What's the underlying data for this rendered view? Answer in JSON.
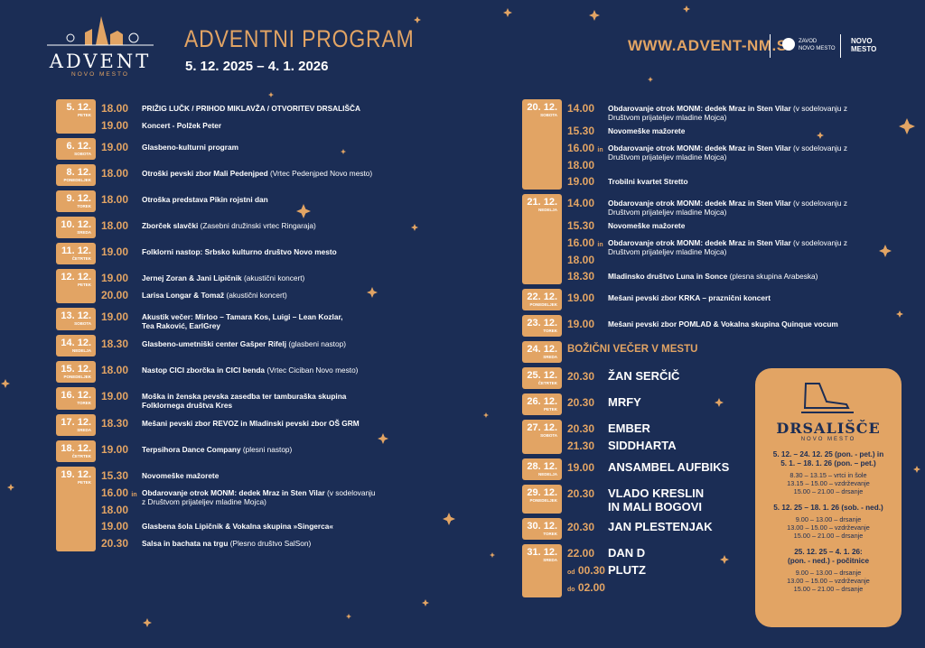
{
  "header": {
    "logo": {
      "name": "ADVENT",
      "city": "NOVO MESTO"
    },
    "title": "ADVENTNI PROGRAM",
    "dates": "5. 12. 2025 – 4. 1. 2026",
    "url": "WWW.ADVENT-NM.SI",
    "partners": [
      "ZAVOD\nNOVO MESTO",
      "NOVO\nMESTO"
    ]
  },
  "columns": [
    {
      "days": [
        {
          "date": "5. 12.",
          "weekday": "PETEK",
          "events": [
            {
              "times": [
                {
                  "t": "18.00"
                }
              ],
              "title": "PRIŽIG LUČK / PRIHOD MIKLAVŽA / OTVORITEV DRSALIŠČA"
            },
            {
              "times": [
                {
                  "t": "19.00"
                }
              ],
              "title": "Koncert - Polžek Peter"
            }
          ]
        },
        {
          "date": "6. 12.",
          "weekday": "SOBOTA",
          "events": [
            {
              "times": [
                {
                  "t": "19.00"
                }
              ],
              "title": "Glasbeno-kulturni program"
            }
          ]
        },
        {
          "date": "8. 12.",
          "weekday": "PONEDELJEK",
          "events": [
            {
              "times": [
                {
                  "t": "18.00"
                }
              ],
              "title": "Otroški pevski zbor Mali Pedenjped",
              "note": "(Vrtec Pedenjped Novo mesto)"
            }
          ]
        },
        {
          "date": "9. 12.",
          "weekday": "TOREK",
          "events": [
            {
              "times": [
                {
                  "t": "18.00"
                }
              ],
              "title": "Otroška predstava Pikin rojstni dan"
            }
          ]
        },
        {
          "date": "10. 12.",
          "weekday": "SREDA",
          "events": [
            {
              "times": [
                {
                  "t": "18.00"
                }
              ],
              "title": "Zborček slavčki",
              "note": "(Zasebni družinski vrtec Ringaraja)"
            }
          ]
        },
        {
          "date": "11. 12.",
          "weekday": "ČETRTEK",
          "events": [
            {
              "times": [
                {
                  "t": "19.00"
                }
              ],
              "title": "Folklorni nastop: Srbsko kulturno društvo Novo mesto"
            }
          ]
        },
        {
          "date": "12. 12.",
          "weekday": "PETEK",
          "events": [
            {
              "times": [
                {
                  "t": "19.00"
                }
              ],
              "title": "Jernej Zoran & Jani Lipičnik",
              "note": "(akustični koncert)"
            },
            {
              "times": [
                {
                  "t": "20.00"
                }
              ],
              "title": "Larisa Longar & Tomaž",
              "note": "(akustični koncert)"
            }
          ]
        },
        {
          "date": "13. 12.",
          "weekday": "SOBOTA",
          "events": [
            {
              "times": [
                {
                  "t": "19.00"
                }
              ],
              "title": "Akustik večer: Mirloo – Tamara Kos, Luigi – Lean Kozlar,\nTea Raković, EarlGrey"
            }
          ]
        },
        {
          "date": "14. 12.",
          "weekday": "NEDELJA",
          "events": [
            {
              "times": [
                {
                  "t": "18.30"
                }
              ],
              "title": "Glasbeno-umetniški center Gašper Rifelj",
              "note": "(glasbeni nastop)"
            }
          ]
        },
        {
          "date": "15. 12.",
          "weekday": "PONEDELJEK",
          "events": [
            {
              "times": [
                {
                  "t": "18.00"
                }
              ],
              "title": "Nastop CICI zborčka in CICI benda",
              "note": "(Vrtec Ciciban Novo mesto)"
            }
          ]
        },
        {
          "date": "16. 12.",
          "weekday": "TOREK",
          "events": [
            {
              "times": [
                {
                  "t": "19.00"
                }
              ],
              "title": "Moška in ženska pevska zasedba ter tamburaška skupina\nFolklornega društva Kres"
            }
          ]
        },
        {
          "date": "17. 12.",
          "weekday": "SREDA",
          "events": [
            {
              "times": [
                {
                  "t": "18.30"
                }
              ],
              "title": "Mešani pevski zbor REVOZ in Mladinski pevski zbor OŠ GRM"
            }
          ]
        },
        {
          "date": "18. 12.",
          "weekday": "ČETRTEK",
          "events": [
            {
              "times": [
                {
                  "t": "19.00"
                }
              ],
              "title": "Terpsihora Dance Company",
              "note": "(plesni nastop)"
            }
          ]
        },
        {
          "date": "19. 12.",
          "weekday": "PETEK",
          "events": [
            {
              "times": [
                {
                  "t": "15.30"
                }
              ],
              "title": "Novomeške mažorete"
            },
            {
              "times": [
                {
                  "t": "16.00",
                  "post": "in"
                },
                {
                  "t": "18.00"
                }
              ],
              "title": "Obdarovanje otrok MONM: dedek Mraz in Sten Vilar",
              "note": "(v sodelovanju z Društvom prijateljev mladine Mojca)"
            },
            {
              "times": [
                {
                  "t": "19.00"
                }
              ],
              "title": "Glasbena šola Lipičnik & Vokalna skupina »Singerca«"
            },
            {
              "times": [
                {
                  "t": "20.30"
                }
              ],
              "title": "Salsa in bachata na trgu",
              "note": "(Plesno društvo SalSon)"
            }
          ]
        }
      ]
    },
    {
      "days": [
        {
          "date": "20. 12.",
          "weekday": "SOBOTA",
          "events": [
            {
              "times": [
                {
                  "t": "14.00"
                }
              ],
              "title": "Obdarovanje otrok MONM: dedek Mraz in Sten Vilar",
              "note": "(v sodelovanju z Društvom prijateljev mladine Mojca)"
            },
            {
              "times": [
                {
                  "t": "15.30"
                }
              ],
              "title": "Novomeške mažorete"
            },
            {
              "times": [
                {
                  "t": "16.00",
                  "post": "in"
                },
                {
                  "t": "18.00"
                }
              ],
              "title": "Obdarovanje otrok MONM: dedek Mraz in Sten Vilar",
              "note": "(v sodelovanju z Društvom prijateljev mladine Mojca)"
            },
            {
              "times": [
                {
                  "t": "19.00"
                }
              ],
              "title": "Trobilni kvartet Stretto"
            }
          ]
        },
        {
          "date": "21. 12.",
          "weekday": "NEDELJA",
          "events": [
            {
              "times": [
                {
                  "t": "14.00"
                }
              ],
              "title": "Obdarovanje otrok MONM: dedek Mraz in Sten Vilar",
              "note": "(v sodelovanju z Društvom prijateljev mladine Mojca)"
            },
            {
              "times": [
                {
                  "t": "15.30"
                }
              ],
              "title": "Novomeške mažorete"
            },
            {
              "times": [
                {
                  "t": "16.00",
                  "post": "in"
                },
                {
                  "t": "18.00"
                }
              ],
              "title": "Obdarovanje otrok MONM: dedek Mraz in Sten Vilar",
              "note": "(v sodelovanju z Društvom prijateljev mladine Mojca)"
            },
            {
              "times": [
                {
                  "t": "18.30"
                }
              ],
              "title": "Mladinsko društvo Luna in Sonce",
              "note": "(plesna skupina Arabeska)"
            }
          ]
        },
        {
          "date": "22. 12.",
          "weekday": "PONEDELJEK",
          "events": [
            {
              "times": [
                {
                  "t": "19.00"
                }
              ],
              "title": "Mešani pevski zbor KRKA – praznični koncert"
            }
          ]
        },
        {
          "date": "23. 12.",
          "weekday": "TOREK",
          "events": [
            {
              "times": [
                {
                  "t": "19.00"
                }
              ],
              "title": "Mešani pevski zbor POMLAD &  Vokalna skupina Quinque vocum"
            }
          ]
        },
        {
          "date": "24. 12.",
          "weekday": "SREDA",
          "events": [
            {
              "title": "BOŽIČNI VEČER V MESTU",
              "style": "heading"
            }
          ]
        },
        {
          "date": "25. 12.",
          "weekday": "ČETRTEK",
          "events": [
            {
              "times": [
                {
                  "t": "20.30"
                }
              ],
              "title": "ŽAN SERČIČ",
              "style": "headline"
            }
          ]
        },
        {
          "date": "26. 12.",
          "weekday": "PETEK",
          "events": [
            {
              "times": [
                {
                  "t": "20.30"
                }
              ],
              "title": "MRFY",
              "style": "headline"
            }
          ]
        },
        {
          "date": "27. 12.",
          "weekday": "SOBOTA",
          "events": [
            {
              "times": [
                {
                  "t": "20.30"
                }
              ],
              "title": "EMBER",
              "style": "headline"
            },
            {
              "times": [
                {
                  "t": "21.30"
                }
              ],
              "title": "SIDDHARTA",
              "style": "headline"
            }
          ]
        },
        {
          "date": "28. 12.",
          "weekday": "NEDELJA",
          "events": [
            {
              "times": [
                {
                  "t": "19.00"
                }
              ],
              "title": "ANSAMBEL AUFBIKS",
              "style": "headline"
            }
          ]
        },
        {
          "date": "29. 12.",
          "weekday": "PONEDELJEK",
          "events": [
            {
              "times": [
                {
                  "t": "20.30"
                }
              ],
              "title": "VLADO KRESLIN\nIN MALI BOGOVI",
              "style": "headline"
            }
          ]
        },
        {
          "date": "30. 12.",
          "weekday": "TOREK",
          "events": [
            {
              "times": [
                {
                  "t": "20.30"
                }
              ],
              "title": "JAN PLESTENJAK",
              "style": "headline"
            }
          ]
        },
        {
          "date": "31. 12.",
          "weekday": "SREDA",
          "events": [
            {
              "times": [
                {
                  "t": "22.00"
                }
              ],
              "title": "DAN D",
              "style": "headline"
            },
            {
              "times": [
                {
                  "pre": "od",
                  "t": "00.30"
                },
                {
                  "pre": "do",
                  "t": "02.00"
                }
              ],
              "title": "PLUTZ",
              "style": "headline"
            }
          ]
        }
      ]
    }
  ],
  "rink": {
    "title": "DRSALIŠČE",
    "subtitle": "NOVO MESTO",
    "sections": [
      {
        "heading": "5. 12. – 24. 12. 25 (pon. - pet.) in\n5. 1. – 18. 1. 26 (pon. – pet.)",
        "lines": [
          "8.30 – 13.15 – vrtci in šole",
          "13.15 – 15.00 – vzdrževanje",
          "15.00 – 21.00 – drsanje"
        ]
      },
      {
        "heading": "5. 12. 25 – 18. 1. 26 (sob. - ned.)",
        "lines": [
          "9.00 – 13.00 – drsanje",
          "13.00 – 15.00 – vzdrževanje",
          "15.00 – 21.00 – drsanje"
        ]
      },
      {
        "heading": "25. 12. 25 – 4. 1. 26:\n(pon. - ned.) - počitnice",
        "lines": [
          "9.00 – 13.00 – drsanje",
          "13.00 – 15.00 – vzdrževanje",
          "15.00 – 21.00 – drsanje"
        ]
      }
    ]
  }
}
